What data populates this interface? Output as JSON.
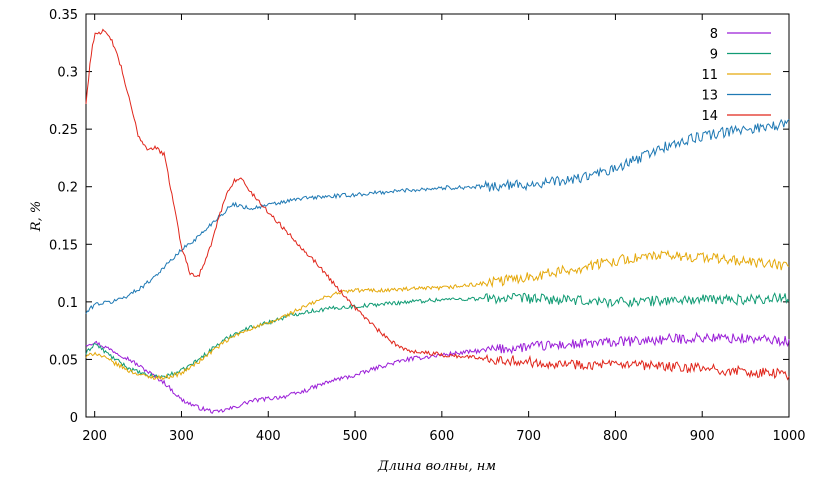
{
  "chart_data": {
    "type": "line",
    "title": "",
    "xlabel": "Длина волны, нм",
    "ylabel": "R, %",
    "xlim": [
      190,
      1000
    ],
    "ylim": [
      0,
      0.35
    ],
    "xticks": [
      200,
      300,
      400,
      500,
      600,
      700,
      800,
      900,
      1000
    ],
    "yticks": [
      0,
      0.05,
      0.1,
      0.15,
      0.2,
      0.25,
      0.3,
      0.35
    ],
    "ytick_labels": [
      "0",
      "0.05",
      "0.1",
      "0.15",
      "0.2",
      "0.25",
      "0.3",
      "0.35"
    ],
    "grid": false,
    "legend_position": "top-right",
    "series": [
      {
        "name": "8",
        "color": "#9b1fd8",
        "x": [
          190,
          200,
          220,
          240,
          260,
          280,
          300,
          320,
          340,
          360,
          380,
          400,
          420,
          440,
          460,
          480,
          500,
          530,
          560,
          600,
          650,
          700,
          750,
          800,
          850,
          900,
          950,
          1000
        ],
        "y": [
          0.063,
          0.065,
          0.058,
          0.05,
          0.04,
          0.03,
          0.015,
          0.008,
          0.004,
          0.008,
          0.014,
          0.016,
          0.018,
          0.022,
          0.028,
          0.033,
          0.036,
          0.044,
          0.05,
          0.054,
          0.058,
          0.061,
          0.063,
          0.065,
          0.067,
          0.069,
          0.068,
          0.066
        ]
      },
      {
        "name": "9",
        "color": "#119b74",
        "x": [
          190,
          200,
          220,
          240,
          260,
          280,
          300,
          320,
          340,
          360,
          380,
          400,
          420,
          440,
          460,
          480,
          500,
          530,
          560,
          600,
          650,
          700,
          750,
          800,
          850,
          900,
          950,
          1000
        ],
        "y": [
          0.055,
          0.064,
          0.052,
          0.042,
          0.036,
          0.035,
          0.04,
          0.05,
          0.062,
          0.072,
          0.078,
          0.082,
          0.087,
          0.091,
          0.093,
          0.095,
          0.096,
          0.098,
          0.1,
          0.102,
          0.103,
          0.103,
          0.101,
          0.1,
          0.101,
          0.102,
          0.102,
          0.104
        ]
      },
      {
        "name": "11",
        "color": "#e5a90c",
        "x": [
          190,
          200,
          220,
          240,
          260,
          280,
          300,
          320,
          340,
          360,
          380,
          400,
          420,
          440,
          460,
          480,
          500,
          530,
          560,
          600,
          650,
          700,
          750,
          800,
          850,
          900,
          950,
          1000
        ],
        "y": [
          0.052,
          0.056,
          0.048,
          0.04,
          0.035,
          0.034,
          0.038,
          0.048,
          0.06,
          0.07,
          0.077,
          0.081,
          0.088,
          0.095,
          0.102,
          0.108,
          0.11,
          0.11,
          0.111,
          0.112,
          0.116,
          0.122,
          0.128,
          0.136,
          0.14,
          0.139,
          0.135,
          0.131
        ]
      },
      {
        "name": "13",
        "color": "#1f79b4",
        "x": [
          190,
          200,
          220,
          240,
          260,
          280,
          300,
          320,
          340,
          360,
          380,
          400,
          420,
          440,
          460,
          480,
          500,
          530,
          560,
          600,
          650,
          700,
          750,
          800,
          850,
          900,
          950,
          1000
        ],
        "y": [
          0.09,
          0.098,
          0.1,
          0.106,
          0.116,
          0.13,
          0.145,
          0.157,
          0.172,
          0.185,
          0.181,
          0.184,
          0.187,
          0.19,
          0.191,
          0.192,
          0.193,
          0.195,
          0.197,
          0.199,
          0.2,
          0.202,
          0.206,
          0.215,
          0.233,
          0.244,
          0.25,
          0.255
        ]
      },
      {
        "name": "14",
        "color": "#e0261b",
        "x": [
          190,
          195,
          200,
          210,
          220,
          230,
          240,
          250,
          260,
          270,
          280,
          290,
          300,
          310,
          320,
          330,
          340,
          350,
          360,
          365,
          370,
          380,
          400,
          420,
          440,
          460,
          480,
          500,
          520,
          540,
          560,
          580,
          600,
          650,
          700,
          750,
          800,
          850,
          900,
          950,
          1000
        ],
        "y": [
          0.272,
          0.31,
          0.333,
          0.335,
          0.327,
          0.305,
          0.275,
          0.245,
          0.233,
          0.234,
          0.228,
          0.19,
          0.148,
          0.125,
          0.123,
          0.14,
          0.165,
          0.19,
          0.205,
          0.207,
          0.206,
          0.195,
          0.178,
          0.162,
          0.146,
          0.13,
          0.112,
          0.095,
          0.08,
          0.066,
          0.058,
          0.056,
          0.054,
          0.051,
          0.048,
          0.046,
          0.045,
          0.044,
          0.042,
          0.039,
          0.037
        ]
      }
    ]
  }
}
